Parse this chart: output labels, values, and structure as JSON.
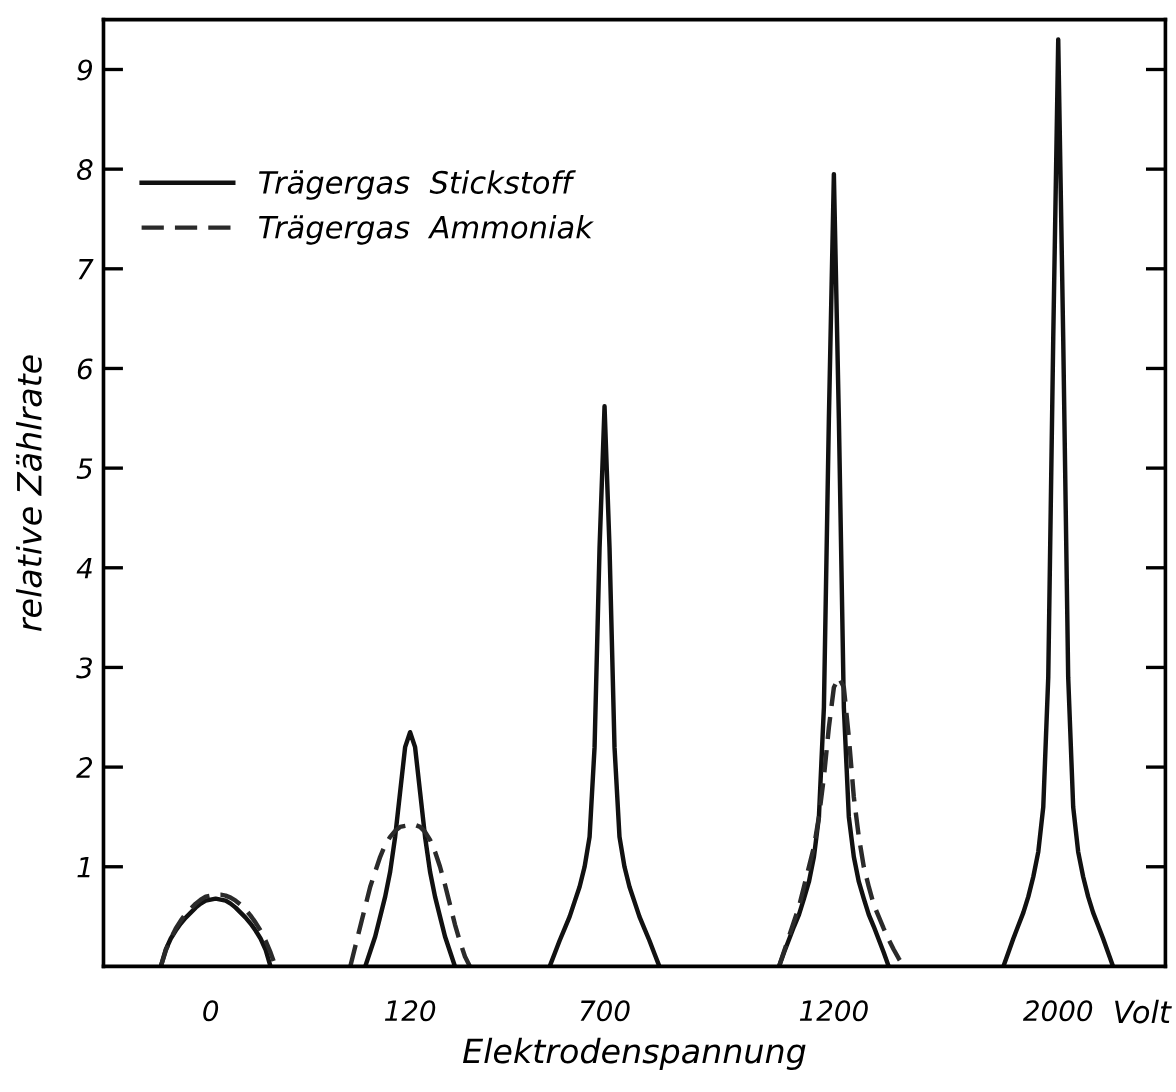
{
  "chart_data": {
    "type": "line",
    "xlabel": "Elektrodenspannung",
    "ylabel": "relative Zählrate",
    "annotations": [
      "Volt"
    ],
    "categories": [
      null,
      null,
      null,
      null,
      null,
      null,
      null,
      null,
      null,
      null,
      null,
      null,
      null,
      null,
      null,
      null,
      null,
      null,
      null,
      null,
      null,
      "0",
      null,
      null,
      null,
      null,
      null,
      null,
      null,
      null,
      null,
      null,
      null,
      null,
      null,
      null,
      null,
      null,
      null,
      null,
      null,
      null,
      null,
      null,
      null,
      null,
      null,
      null,
      null,
      null,
      null,
      null,
      null,
      null,
      null,
      null,
      null,
      null,
      null,
      null,
      null,
      "120",
      null,
      null,
      null,
      null,
      null,
      null,
      null,
      null,
      null,
      null,
      null,
      null,
      null,
      null,
      null,
      null,
      null,
      null,
      null,
      null,
      null,
      null,
      null,
      null,
      null,
      null,
      null,
      null,
      null,
      null,
      null,
      null,
      null,
      null,
      null,
      null,
      null,
      null,
      "700",
      null,
      null,
      null,
      null,
      null,
      null,
      null,
      null,
      null,
      null,
      null,
      null,
      null,
      null,
      null,
      null,
      null,
      null,
      null,
      null,
      null,
      null,
      null,
      null,
      null,
      null,
      null,
      null,
      null,
      null,
      null,
      null,
      null,
      null,
      null,
      null,
      null,
      null,
      null,
      null,
      null,
      null,
      null,
      null,
      null,
      "1200",
      null,
      null,
      null,
      null,
      null,
      null,
      null,
      null,
      null,
      null,
      null,
      null,
      null,
      null,
      null,
      null,
      null,
      null,
      null,
      null,
      null,
      null,
      null,
      null,
      null,
      null,
      null,
      null,
      null,
      null,
      null,
      null,
      null,
      null,
      null,
      null,
      null,
      null,
      null,
      null,
      null,
      null,
      null,
      null,
      "2000",
      null,
      null,
      null,
      null,
      null,
      null,
      null,
      null,
      null,
      null,
      null,
      null,
      null,
      null,
      null,
      null,
      null,
      null,
      null,
      null,
      null
    ],
    "ylim": [
      0,
      9.5
    ],
    "yticks": [
      1,
      2,
      3,
      4,
      5,
      6,
      7,
      8,
      9
    ],
    "legend": "top left",
    "series": [
      {
        "name": "Trägergas  Stickstoff",
        "color": "#111111",
        "line_style": "solid",
        "values": [
          null,
          null,
          null,
          null,
          null,
          null,
          null,
          null,
          null,
          null,
          null,
          0,
          0.17,
          0.28,
          0.36,
          0.43,
          0.49,
          0.54,
          0.59,
          0.63,
          0.66,
          0.67,
          0.68,
          0.67,
          0.66,
          0.63,
          0.59,
          0.54,
          0.49,
          0.43,
          0.36,
          0.28,
          0.17,
          0,
          null,
          null,
          null,
          null,
          null,
          null,
          null,
          null,
          null,
          null,
          null,
          null,
          null,
          null,
          null,
          null,
          null,
          null,
          0,
          0.15,
          0.3,
          0.5,
          0.7,
          0.95,
          1.3,
          1.75,
          2.2,
          2.35,
          2.2,
          1.75,
          1.3,
          0.95,
          0.7,
          0.5,
          0.3,
          0.15,
          0,
          null,
          null,
          null,
          null,
          null,
          null,
          null,
          null,
          null,
          null,
          null,
          null,
          null,
          null,
          null,
          null,
          null,
          null,
          0,
          0.13,
          0.26,
          0.38,
          0.5,
          0.65,
          0.8,
          1.0,
          1.3,
          2.2,
          4.2,
          5.62,
          4.2,
          2.2,
          1.3,
          1.0,
          0.8,
          0.65,
          0.5,
          0.38,
          0.26,
          0.13,
          0,
          null,
          null,
          null,
          null,
          null,
          null,
          null,
          null,
          null,
          null,
          null,
          null,
          null,
          null,
          null,
          null,
          null,
          null,
          null,
          null,
          null,
          null,
          null,
          0,
          0.14,
          0.27,
          0.4,
          0.52,
          0.68,
          0.85,
          1.1,
          1.5,
          2.6,
          5.5,
          7.95,
          5.5,
          2.6,
          1.5,
          1.1,
          0.85,
          0.68,
          0.52,
          0.4,
          0.27,
          0.14,
          0,
          null,
          null,
          null,
          null,
          null,
          null,
          null,
          null,
          null,
          null,
          null,
          null,
          null,
          null,
          null,
          null,
          null,
          null,
          null,
          null,
          null,
          null,
          0,
          0.14,
          0.28,
          0.41,
          0.54,
          0.7,
          0.9,
          1.15,
          1.6,
          2.9,
          6.3,
          9.3,
          6.3,
          2.9,
          1.6,
          1.15,
          0.9,
          0.7,
          0.54,
          0.41,
          0.28,
          0.14,
          0,
          null,
          null,
          null,
          null,
          null,
          null,
          null,
          null,
          null,
          null
        ]
      },
      {
        "name": "Trägergas  Ammoniak",
        "color": "#2a2a2a",
        "line_style": "dashed",
        "values": [
          null,
          null,
          null,
          null,
          null,
          null,
          null,
          null,
          null,
          null,
          null,
          0,
          0.16,
          0.28,
          0.38,
          0.46,
          0.53,
          0.58,
          0.63,
          0.67,
          0.7,
          0.71,
          0.72,
          0.72,
          0.71,
          0.69,
          0.66,
          0.62,
          0.57,
          0.51,
          0.44,
          0.36,
          0.26,
          0.14,
          0,
          null,
          null,
          null,
          null,
          null,
          null,
          null,
          null,
          null,
          null,
          null,
          null,
          null,
          null,
          0,
          0.2,
          0.4,
          0.6,
          0.8,
          0.95,
          1.1,
          1.22,
          1.3,
          1.36,
          1.4,
          1.41,
          1.42,
          1.42,
          1.4,
          1.35,
          1.27,
          1.15,
          1.0,
          0.82,
          0.62,
          0.42,
          0.25,
          0.1,
          0,
          null,
          null,
          null,
          null,
          null,
          null,
          null,
          null,
          null,
          null,
          null,
          null,
          null,
          null,
          null,
          null,
          null,
          null,
          null,
          null,
          null,
          null,
          null,
          null,
          null,
          null,
          null,
          null,
          null,
          null,
          null,
          null,
          null,
          null,
          null,
          null,
          null,
          null,
          null,
          null,
          null,
          null,
          null,
          null,
          null,
          null,
          null,
          null,
          null,
          null,
          null,
          null,
          null,
          null,
          null,
          null,
          null,
          null,
          null,
          null,
          null,
          0,
          0.15,
          0.3,
          0.45,
          0.6,
          0.8,
          1.0,
          1.2,
          1.5,
          1.9,
          2.4,
          2.8,
          2.9,
          2.8,
          2.3,
          1.7,
          1.3,
          1.0,
          0.8,
          0.62,
          0.5,
          0.38,
          0.27,
          0.17,
          0.08,
          0,
          null,
          null,
          null,
          null,
          null,
          null,
          null,
          null,
          null,
          null,
          null,
          null,
          null,
          null,
          null,
          null,
          null,
          null,
          null,
          null,
          null,
          null,
          null,
          null,
          null,
          null,
          null,
          null,
          null,
          null,
          null,
          null,
          null,
          null,
          null,
          null,
          null,
          null,
          null,
          null,
          null,
          null,
          null,
          null,
          null,
          null,
          null,
          null,
          null,
          null,
          null,
          null
        ]
      }
    ]
  }
}
